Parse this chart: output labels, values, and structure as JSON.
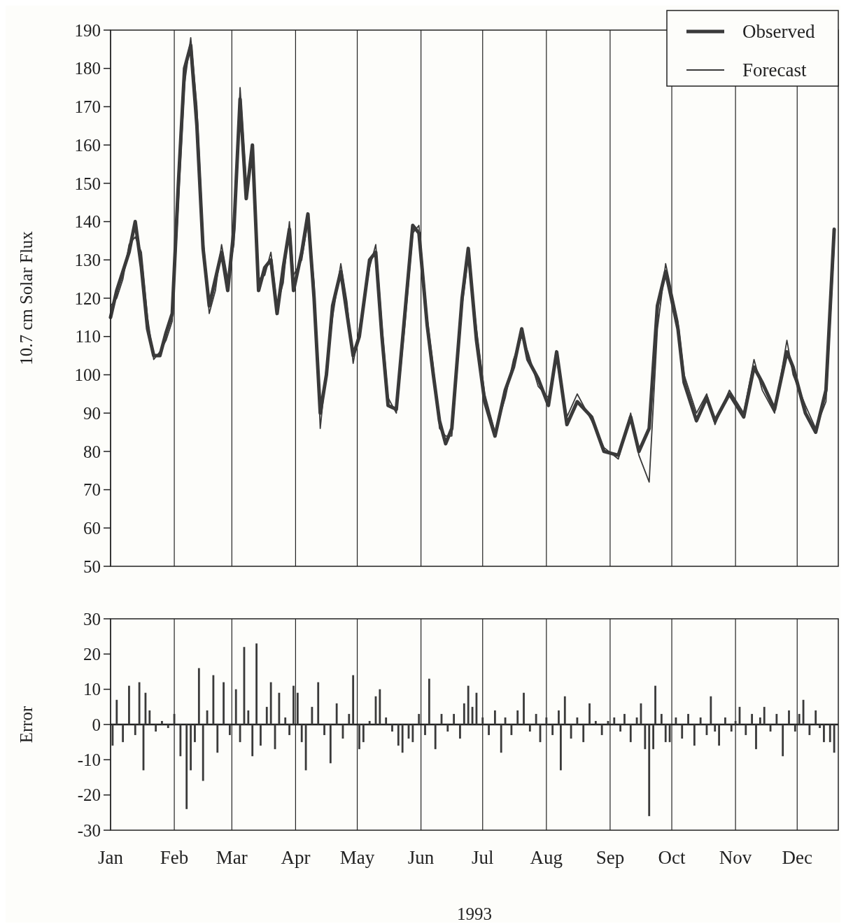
{
  "chart_data": [
    {
      "type": "line",
      "ylabel": "10.7 cm Solar Flux",
      "xlim": [
        "1993-01-01",
        "1993-12-21"
      ],
      "ylim": [
        50,
        190
      ],
      "yticks": [
        50,
        60,
        70,
        80,
        90,
        100,
        110,
        120,
        130,
        140,
        150,
        160,
        170,
        180,
        190
      ],
      "xticks": [
        {
          "value": "1993-01-01",
          "label": null
        },
        {
          "value": "1993-02-01",
          "label": null
        },
        {
          "value": "1993-03-01",
          "label": null
        },
        {
          "value": "1993-04-01",
          "label": null
        },
        {
          "value": "1993-05-01",
          "label": null
        },
        {
          "value": "1993-06-01",
          "label": null
        },
        {
          "value": "1993-07-01",
          "label": null
        },
        {
          "value": "1993-08-01",
          "label": null
        },
        {
          "value": "1993-09-01",
          "label": null
        },
        {
          "value": "1993-10-01",
          "label": null
        },
        {
          "value": "1993-11-01",
          "label": null
        },
        {
          "value": "1993-12-01",
          "label": null
        }
      ],
      "tick_labels": "y",
      "grid": "x",
      "legend": "top right",
      "series": [
        {
          "name": "Observed",
          "color": "#3a3a3a",
          "x": [
            "1993-01-01",
            "1993-01-04",
            "1993-01-07",
            "1993-01-10",
            "1993-01-13",
            "1993-01-16",
            "1993-01-19",
            "1993-01-22",
            "1993-01-25",
            "1993-01-28",
            "1993-01-31",
            "1993-02-03",
            "1993-02-06",
            "1993-02-09",
            "1993-02-12",
            "1993-02-15",
            "1993-02-18",
            "1993-02-21",
            "1993-02-24",
            "1993-02-27",
            "1993-03-02",
            "1993-03-05",
            "1993-03-08",
            "1993-03-11",
            "1993-03-14",
            "1993-03-17",
            "1993-03-20",
            "1993-03-23",
            "1993-03-26",
            "1993-03-29",
            "1993-03-31",
            "1993-04-04",
            "1993-04-07",
            "1993-04-10",
            "1993-04-13",
            "1993-04-16",
            "1993-04-19",
            "1993-04-23",
            "1993-04-26",
            "1993-04-29",
            "1993-05-02",
            "1993-05-07",
            "1993-05-10",
            "1993-05-13",
            "1993-05-16",
            "1993-05-20",
            "1993-05-24",
            "1993-05-28",
            "1993-05-31",
            "1993-06-04",
            "1993-06-07",
            "1993-06-10",
            "1993-06-13",
            "1993-06-16",
            "1993-06-21",
            "1993-06-24",
            "1993-06-28",
            "1993-07-02",
            "1993-07-07",
            "1993-07-12",
            "1993-07-16",
            "1993-07-20",
            "1993-07-23",
            "1993-07-28",
            "1993-08-02",
            "1993-08-06",
            "1993-08-11",
            "1993-08-16",
            "1993-08-23",
            "1993-08-29",
            "1993-09-05",
            "1993-09-11",
            "1993-09-15",
            "1993-09-20",
            "1993-09-24",
            "1993-09-28",
            "1993-10-04",
            "1993-10-07",
            "1993-10-13",
            "1993-10-18",
            "1993-10-22",
            "1993-10-29",
            "1993-11-05",
            "1993-11-10",
            "1993-11-14",
            "1993-11-20",
            "1993-11-26",
            "1993-11-29",
            "1993-12-05",
            "1993-12-10",
            "1993-12-15",
            "1993-12-19"
          ],
          "values": [
            115,
            122,
            127,
            132,
            140,
            128,
            112,
            105,
            105,
            111,
            116,
            150,
            180,
            186,
            165,
            133,
            118,
            125,
            132,
            122,
            138,
            172,
            146,
            160,
            122,
            128,
            130,
            116,
            128,
            138,
            122,
            132,
            142,
            120,
            90,
            100,
            118,
            127,
            116,
            105,
            110,
            130,
            132,
            110,
            92,
            91,
            115,
            139,
            137,
            113,
            100,
            88,
            82,
            86,
            120,
            133,
            109,
            93,
            84,
            96,
            102,
            112,
            104,
            99,
            92,
            106,
            87,
            93,
            89,
            80,
            79,
            89,
            80,
            86,
            118,
            127,
            112,
            98,
            88,
            94,
            88,
            95,
            89,
            102,
            98,
            91,
            106,
            102,
            90,
            85,
            96,
            138
          ]
        },
        {
          "name": "Forecast",
          "color": "#3a3a3a",
          "x": [
            "1993-01-01",
            "1993-01-04",
            "1993-01-07",
            "1993-01-10",
            "1993-01-13",
            "1993-01-16",
            "1993-01-19",
            "1993-01-22",
            "1993-01-25",
            "1993-01-28",
            "1993-01-31",
            "1993-02-03",
            "1993-02-06",
            "1993-02-09",
            "1993-02-12",
            "1993-02-15",
            "1993-02-18",
            "1993-02-21",
            "1993-02-24",
            "1993-02-27",
            "1993-03-02",
            "1993-03-05",
            "1993-03-08",
            "1993-03-11",
            "1993-03-14",
            "1993-03-17",
            "1993-03-20",
            "1993-03-23",
            "1993-03-26",
            "1993-03-29",
            "1993-03-31",
            "1993-04-04",
            "1993-04-07",
            "1993-04-10",
            "1993-04-13",
            "1993-04-16",
            "1993-04-19",
            "1993-04-23",
            "1993-04-26",
            "1993-04-29",
            "1993-05-02",
            "1993-05-07",
            "1993-05-10",
            "1993-05-13",
            "1993-05-16",
            "1993-05-20",
            "1993-05-24",
            "1993-05-28",
            "1993-05-31",
            "1993-06-04",
            "1993-06-07",
            "1993-06-10",
            "1993-06-13",
            "1993-06-16",
            "1993-06-21",
            "1993-06-24",
            "1993-06-28",
            "1993-07-02",
            "1993-07-07",
            "1993-07-12",
            "1993-07-16",
            "1993-07-20",
            "1993-07-23",
            "1993-07-28",
            "1993-08-02",
            "1993-08-06",
            "1993-08-11",
            "1993-08-16",
            "1993-08-23",
            "1993-08-29",
            "1993-09-05",
            "1993-09-11",
            "1993-09-15",
            "1993-09-20",
            "1993-09-24",
            "1993-09-28",
            "1993-10-04",
            "1993-10-07",
            "1993-10-13",
            "1993-10-18",
            "1993-10-22",
            "1993-10-29",
            "1993-11-05",
            "1993-11-10",
            "1993-11-14",
            "1993-11-20",
            "1993-11-26",
            "1993-11-29",
            "1993-12-05",
            "1993-12-10",
            "1993-12-15",
            "1993-12-19"
          ],
          "values": [
            118,
            120,
            125,
            134,
            136,
            132,
            115,
            104,
            106,
            109,
            114,
            145,
            176,
            188,
            170,
            136,
            116,
            122,
            134,
            125,
            134,
            175,
            150,
            156,
            125,
            126,
            132,
            118,
            124,
            140,
            126,
            130,
            140,
            124,
            86,
            102,
            115,
            129,
            119,
            103,
            112,
            128,
            134,
            113,
            94,
            90,
            112,
            137,
            139,
            115,
            102,
            86,
            84,
            84,
            118,
            131,
            112,
            95,
            85,
            94,
            104,
            110,
            106,
            97,
            94,
            104,
            89,
            95,
            88,
            81,
            78,
            90,
            79,
            72,
            112,
            129,
            114,
            100,
            90,
            95,
            87,
            96,
            90,
            104,
            96,
            90,
            109,
            100,
            92,
            86,
            93,
            134
          ]
        }
      ]
    },
    {
      "type": "bar",
      "ylabel": "Error",
      "xlabel": "1993",
      "color": "#3a3a3a",
      "xlim": [
        "1993-01-01",
        "1993-12-21"
      ],
      "ylim": [
        -30,
        30
      ],
      "yticks": [
        -30,
        -20,
        -10,
        0,
        10,
        20,
        30
      ],
      "xticks": [
        {
          "value": "1993-01-01",
          "label": "Jan"
        },
        {
          "value": "1993-02-01",
          "label": "Feb"
        },
        {
          "value": "1993-03-01",
          "label": "Mar"
        },
        {
          "value": "1993-04-01",
          "label": "Apr"
        },
        {
          "value": "1993-05-01",
          "label": "May"
        },
        {
          "value": "1993-06-01",
          "label": "Jun"
        },
        {
          "value": "1993-07-01",
          "label": "Jul"
        },
        {
          "value": "1993-08-01",
          "label": "Aug"
        },
        {
          "value": "1993-09-01",
          "label": "Sep"
        },
        {
          "value": "1993-10-01",
          "label": "Oct"
        },
        {
          "value": "1993-11-01",
          "label": "Nov"
        },
        {
          "value": "1993-12-01",
          "label": "Dec"
        }
      ],
      "grid": "x",
      "x": [
        "1993-01-02",
        "1993-01-04",
        "1993-01-07",
        "1993-01-10",
        "1993-01-13",
        "1993-01-15",
        "1993-01-17",
        "1993-01-18",
        "1993-01-20",
        "1993-01-23",
        "1993-01-26",
        "1993-01-29",
        "1993-02-01",
        "1993-02-04",
        "1993-02-07",
        "1993-02-09",
        "1993-02-11",
        "1993-02-13",
        "1993-02-15",
        "1993-02-17",
        "1993-02-20",
        "1993-02-22",
        "1993-02-25",
        "1993-02-28",
        "1993-03-03",
        "1993-03-05",
        "1993-03-07",
        "1993-03-09",
        "1993-03-11",
        "1993-03-13",
        "1993-03-15",
        "1993-03-18",
        "1993-03-20",
        "1993-03-22",
        "1993-03-24",
        "1993-03-27",
        "1993-03-29",
        "1993-03-31",
        "1993-04-02",
        "1993-04-04",
        "1993-04-06",
        "1993-04-09",
        "1993-04-12",
        "1993-04-15",
        "1993-04-18",
        "1993-04-21",
        "1993-04-24",
        "1993-04-27",
        "1993-04-29",
        "1993-05-02",
        "1993-05-04",
        "1993-05-07",
        "1993-05-10",
        "1993-05-12",
        "1993-05-15",
        "1993-05-18",
        "1993-05-21",
        "1993-05-23",
        "1993-05-26",
        "1993-05-28",
        "1993-05-31",
        "1993-06-03",
        "1993-06-05",
        "1993-06-08",
        "1993-06-11",
        "1993-06-14",
        "1993-06-17",
        "1993-06-20",
        "1993-06-22",
        "1993-06-24",
        "1993-06-26",
        "1993-06-28",
        "1993-07-01",
        "1993-07-04",
        "1993-07-07",
        "1993-07-10",
        "1993-07-12",
        "1993-07-15",
        "1993-07-18",
        "1993-07-21",
        "1993-07-24",
        "1993-07-27",
        "1993-07-29",
        "1993-08-01",
        "1993-08-04",
        "1993-08-07",
        "1993-08-08",
        "1993-08-10",
        "1993-08-13",
        "1993-08-16",
        "1993-08-19",
        "1993-08-22",
        "1993-08-25",
        "1993-08-28",
        "1993-08-31",
        "1993-09-03",
        "1993-09-06",
        "1993-09-08",
        "1993-09-11",
        "1993-09-14",
        "1993-09-16",
        "1993-09-18",
        "1993-09-20",
        "1993-09-22",
        "1993-09-23",
        "1993-09-26",
        "1993-09-28",
        "1993-09-30",
        "1993-10-03",
        "1993-10-06",
        "1993-10-09",
        "1993-10-12",
        "1993-10-15",
        "1993-10-18",
        "1993-10-20",
        "1993-10-22",
        "1993-10-24",
        "1993-10-27",
        "1993-10-30",
        "1993-11-01",
        "1993-11-03",
        "1993-11-06",
        "1993-11-09",
        "1993-11-11",
        "1993-11-13",
        "1993-11-15",
        "1993-11-18",
        "1993-11-21",
        "1993-11-24",
        "1993-11-27",
        "1993-11-30",
        "1993-12-02",
        "1993-12-04",
        "1993-12-07",
        "1993-12-10",
        "1993-12-12",
        "1993-12-14",
        "1993-12-17",
        "1993-12-19"
      ],
      "values": [
        -6,
        7,
        -5,
        11,
        -3,
        12,
        -13,
        9,
        4,
        -2,
        1,
        -1,
        3,
        -9,
        -24,
        -13,
        -5,
        16,
        -16,
        4,
        14,
        -8,
        12,
        -3,
        10,
        -5,
        22,
        4,
        -9,
        23,
        -6,
        5,
        12,
        -7,
        9,
        2,
        -3,
        11,
        9,
        -5,
        -13,
        5,
        12,
        -3,
        -11,
        6,
        -4,
        3,
        14,
        -7,
        -5,
        1,
        8,
        10,
        2,
        -2,
        -6,
        -8,
        -4,
        -5,
        3,
        -3,
        13,
        -7,
        3,
        -2,
        3,
        -4,
        6,
        11,
        5,
        9,
        2,
        -3,
        4,
        -8,
        2,
        -3,
        4,
        9,
        -2,
        3,
        -5,
        2,
        -3,
        4,
        -13,
        8,
        -4,
        2,
        -5,
        6,
        1,
        -3,
        1,
        2,
        -2,
        3,
        -5,
        2,
        6,
        -7,
        -26,
        -7,
        11,
        3,
        -5,
        -5,
        2,
        -4,
        3,
        -6,
        2,
        -3,
        8,
        -2,
        -6,
        2,
        -2,
        1,
        5,
        -3,
        3,
        -7,
        2,
        5,
        -2,
        3,
        -9,
        4,
        -2,
        3,
        7,
        -3,
        4,
        -1,
        -5,
        -5,
        -8
      ]
    }
  ]
}
